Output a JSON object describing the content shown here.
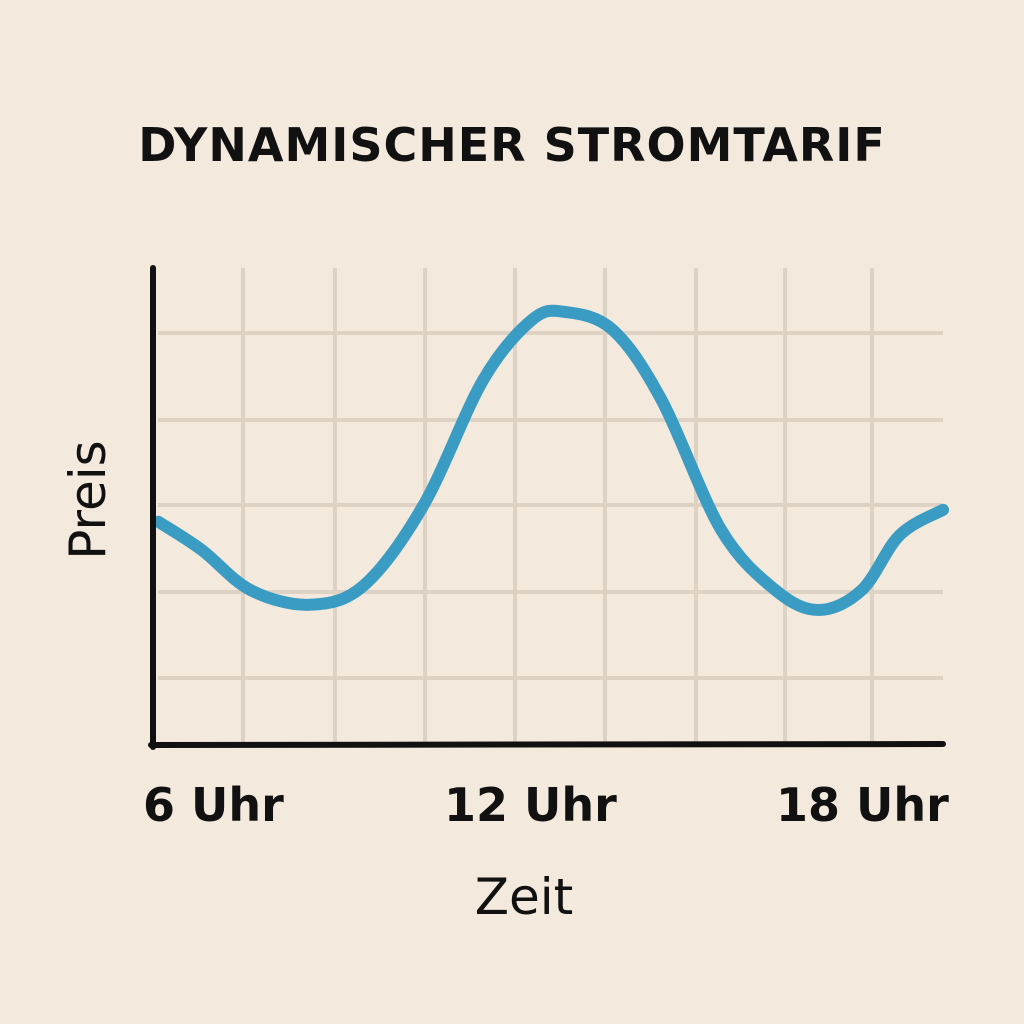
{
  "chart_data": {
    "type": "line",
    "title": "DYNAMISCHER STROMTARIF",
    "xlabel": "Zeit",
    "ylabel": "Preis",
    "x_tick_labels": [
      {
        "x": 6,
        "label": "6 Uhr"
      },
      {
        "x": 12,
        "label": "12 Uhr"
      },
      {
        "x": 18,
        "label": "18 Uhr"
      }
    ],
    "xlim": [
      5,
      19.6
    ],
    "ylim": [
      0,
      100
    ],
    "grid": true,
    "line_color": "#3a9cc2",
    "grid_color": "#ddd2c3",
    "series": [
      {
        "x": [
          5.1,
          5.9,
          6.8,
          7.9,
          8.9,
          10.0,
          11.1,
          12.0,
          12.6,
          13.5,
          14.4,
          15.5,
          16.5,
          17.3,
          18.1,
          18.8,
          19.6
        ],
        "y": [
          46.8,
          40.9,
          32.5,
          29.4,
          33.5,
          50.3,
          76.5,
          89.1,
          90.8,
          87.0,
          72.3,
          45.1,
          32.5,
          28.3,
          32.5,
          44.0,
          49.3
        ]
      }
    ]
  }
}
